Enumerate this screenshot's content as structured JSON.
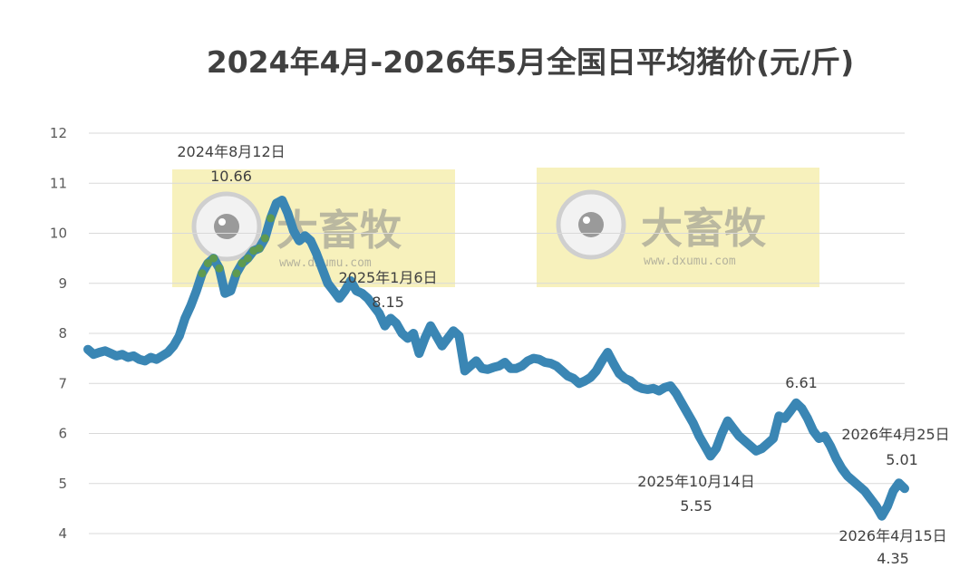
{
  "watermark": {
    "brand": "大畜牧",
    "url": "www.dxumu.com"
  },
  "colors": {
    "line": "#3a86b4",
    "peak_segment": "#5f9a4f",
    "watermark_bg": "#f6efb0",
    "grid": "#d9d9d9"
  },
  "chart_data": {
    "type": "line",
    "title": "2024年4月-2026年5月全国日平均猪价(元/斤)",
    "xlabel": "",
    "ylabel": "",
    "ylim": [
      4,
      12
    ],
    "yticks": [
      4,
      5,
      6,
      7,
      8,
      9,
      10,
      11,
      12
    ],
    "grid": true,
    "series": [
      {
        "values": [
          7.68,
          7.58,
          7.62,
          7.65,
          7.6,
          7.55,
          7.58,
          7.52,
          7.55,
          7.48,
          7.45,
          7.52,
          7.48,
          7.55,
          7.62,
          7.75,
          7.95,
          8.3,
          8.55,
          8.85,
          9.2,
          9.4,
          9.5,
          9.3,
          8.8,
          8.85,
          9.2,
          9.4,
          9.5,
          9.65,
          9.7,
          9.9,
          10.3,
          10.6,
          10.66,
          10.4,
          10.05,
          9.85,
          9.95,
          9.85,
          9.6,
          9.3,
          9.0,
          8.85,
          8.7,
          8.85,
          9.05,
          8.85,
          8.8,
          8.7,
          8.55,
          8.4,
          8.15,
          8.3,
          8.2,
          8.0,
          7.9,
          8.0,
          7.6,
          7.9,
          8.15,
          7.95,
          7.75,
          7.9,
          8.05,
          7.95,
          7.25,
          7.35,
          7.45,
          7.3,
          7.28,
          7.32,
          7.35,
          7.42,
          7.3,
          7.3,
          7.35,
          7.45,
          7.5,
          7.48,
          7.42,
          7.4,
          7.35,
          7.25,
          7.15,
          7.1,
          7.0,
          7.05,
          7.12,
          7.25,
          7.45,
          7.62,
          7.4,
          7.2,
          7.1,
          7.05,
          6.95,
          6.9,
          6.88,
          6.9,
          6.85,
          6.92,
          6.95,
          6.8,
          6.6,
          6.4,
          6.2,
          5.95,
          5.75,
          5.55,
          5.7,
          6.0,
          6.25,
          6.1,
          5.95,
          5.85,
          5.75,
          5.65,
          5.7,
          5.8,
          5.9,
          6.35,
          6.3,
          6.45,
          6.61,
          6.5,
          6.3,
          6.05,
          5.9,
          5.95,
          5.75,
          5.5,
          5.3,
          5.15,
          5.05,
          4.95,
          4.85,
          4.7,
          4.55,
          4.35,
          4.55,
          4.85,
          5.01,
          4.9
        ]
      }
    ],
    "annotations": [
      {
        "date": "2024年8月12日",
        "value": "10.66"
      },
      {
        "date": "2025年1月6日",
        "value": "8.15"
      },
      {
        "date": "",
        "value": "6.61"
      },
      {
        "date": "2025年10月14日",
        "value": "5.55"
      },
      {
        "date": "2026年4月25日",
        "value": "5.01"
      },
      {
        "date": "2026年4月15日",
        "value": "4.35"
      }
    ]
  }
}
